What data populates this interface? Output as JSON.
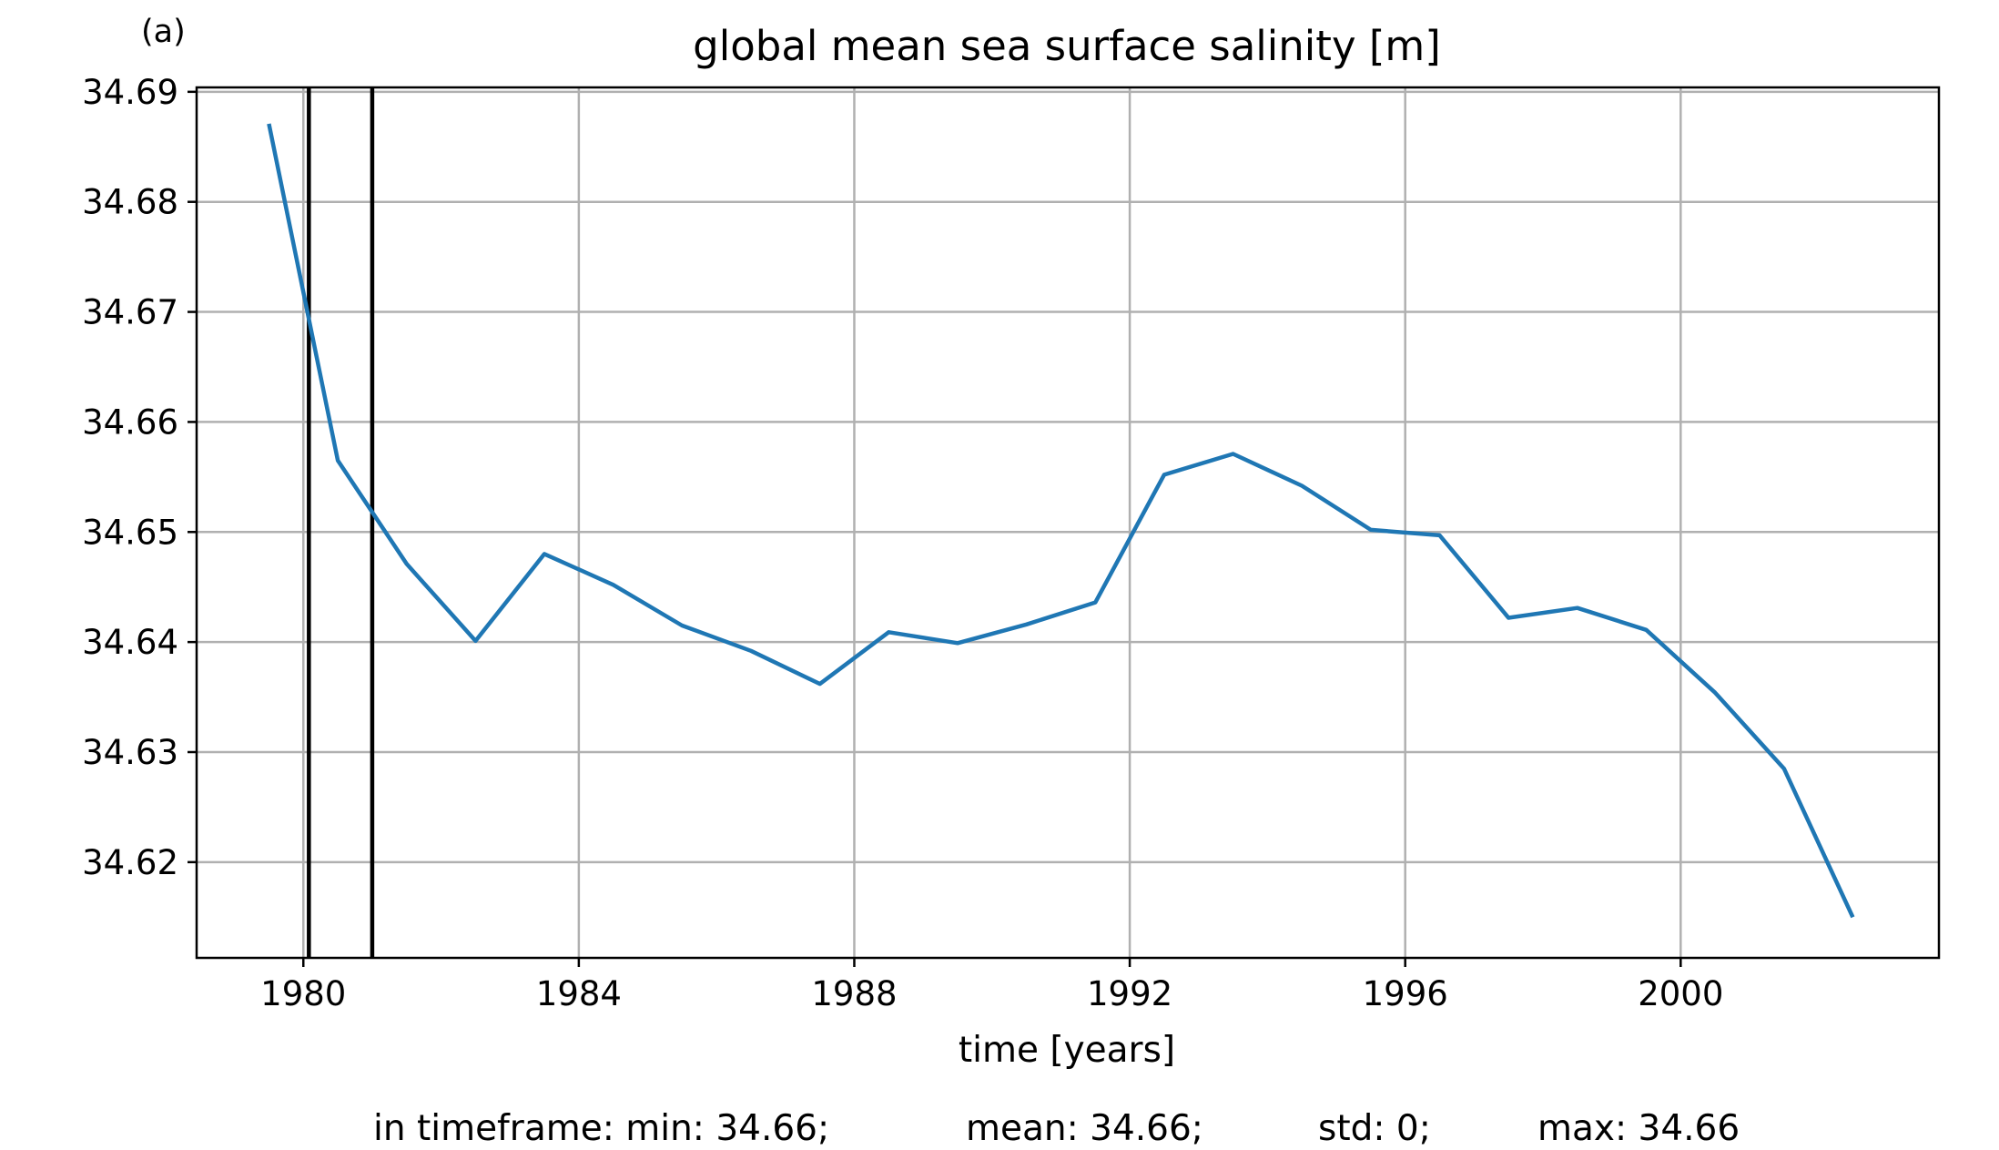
{
  "panel_label": "(a)",
  "stats": {
    "min": "in timeframe: min: 34.66;",
    "mean": "mean: 34.66;",
    "std": "std: 0;",
    "max": "max: 34.66"
  },
  "colors": {
    "series": "#1f77b4",
    "marker_lines": "#000000",
    "grid": "#b0b0b0"
  },
  "chart_data": {
    "type": "line",
    "title": "global mean sea surface salinity [m]",
    "xlabel": "time [years]",
    "ylabel": "",
    "xlim": [
      1978.45,
      2003.75
    ],
    "ylim": [
      34.6113,
      34.6904
    ],
    "xticks": [
      1980,
      1984,
      1988,
      1992,
      1996,
      2000
    ],
    "xtick_labels": [
      "1980",
      "1984",
      "1988",
      "1992",
      "1996",
      "2000"
    ],
    "yticks": [
      34.62,
      34.63,
      34.64,
      34.65,
      34.66,
      34.67,
      34.68,
      34.69
    ],
    "ytick_labels": [
      "34.62",
      "34.63",
      "34.64",
      "34.65",
      "34.66",
      "34.67",
      "34.68",
      "34.69"
    ],
    "grid": true,
    "vertical_markers": [
      1980.08,
      1981.0
    ],
    "series": [
      {
        "x": [
          1979.5,
          1980.5,
          1981.5,
          1982.5,
          1983.5,
          1984.5,
          1985.5,
          1986.5,
          1987.5,
          1988.5,
          1989.5,
          1990.5,
          1991.5,
          1992.5,
          1993.5,
          1994.5,
          1995.5,
          1996.5,
          1997.5,
          1998.5,
          1999.5,
          2000.5,
          2001.5,
          2002.5
        ],
        "y": [
          34.6871,
          34.6565,
          34.6471,
          34.6401,
          34.648,
          34.6452,
          34.6415,
          34.6392,
          34.6362,
          34.6409,
          34.6399,
          34.6416,
          34.6436,
          34.6552,
          34.6571,
          34.6542,
          34.6502,
          34.6497,
          34.6422,
          34.6431,
          34.6411,
          34.6354,
          34.6285,
          34.615
        ]
      }
    ]
  }
}
